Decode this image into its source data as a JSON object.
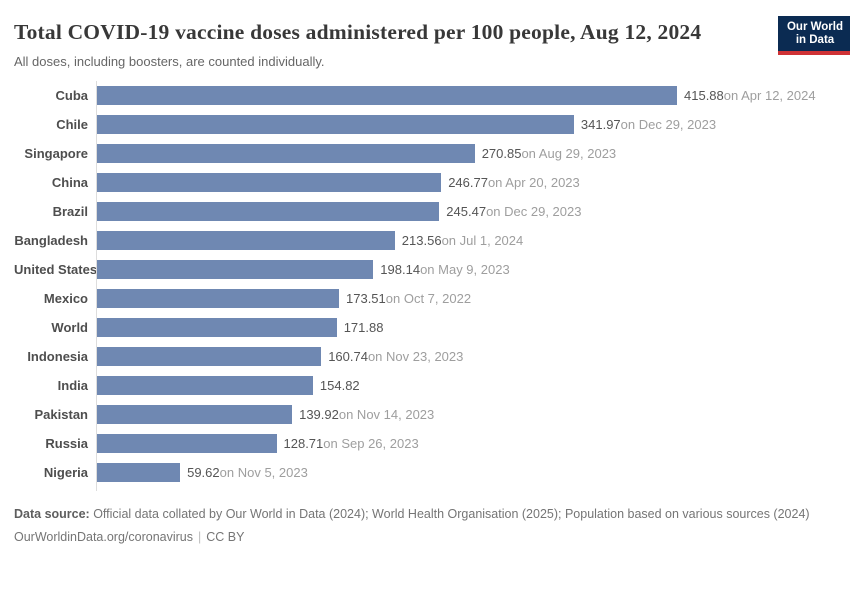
{
  "header": {
    "title": "Total COVID-19 vaccine doses administered per 100 people, Aug 12, 2024",
    "subtitle": "All doses, including boosters, are counted individually.",
    "logo": {
      "line1": "Our World",
      "line2": "in Data"
    }
  },
  "chart_data": {
    "type": "bar",
    "orientation": "horizontal",
    "title": "Total COVID-19 vaccine doses administered per 100 people, Aug 12, 2024",
    "xlabel": "",
    "ylabel": "",
    "xlim": [
      0,
      415.88
    ],
    "grid": false,
    "legend": "none",
    "categories": [
      "Cuba",
      "Chile",
      "Singapore",
      "China",
      "Brazil",
      "Bangladesh",
      "United States",
      "Mexico",
      "World",
      "Indonesia",
      "India",
      "Pakistan",
      "Russia",
      "Nigeria"
    ],
    "values": [
      415.88,
      341.97,
      270.85,
      246.77,
      245.47,
      213.56,
      198.14,
      173.51,
      171.88,
      160.74,
      154.82,
      139.92,
      128.71,
      59.62
    ],
    "date_labels": [
      "on Apr 12, 2024",
      "on Dec 29, 2023",
      "on Aug 29, 2023",
      "on Apr 20, 2023",
      "on Dec 29, 2023",
      "on Jul 1, 2024",
      "on May 9, 2023",
      "on Oct 7, 2022",
      "",
      "on Nov 23, 2023",
      "",
      "on Nov 14, 2023",
      "on Sep 26, 2023",
      "on Nov 5, 2023"
    ]
  },
  "footer": {
    "source_label": "Data source:",
    "source_text": " Official data collated by Our World in Data (2024); World Health Organisation (2025); Population based on various sources (2024)",
    "url": "OurWorldinData.org/coronavirus",
    "separator": "|",
    "license": "CC BY"
  },
  "colors": {
    "bar": "#6f88b2",
    "title_text": "#383838",
    "subtitle_text": "#666666",
    "category_label": "#4e4e4e",
    "value_label": "#555555",
    "date_label": "#9e9e9e",
    "axis_line": "#dddddd",
    "logo_background": "#0b2b52",
    "logo_accent": "#cf3235",
    "footer_text": "#757575"
  }
}
